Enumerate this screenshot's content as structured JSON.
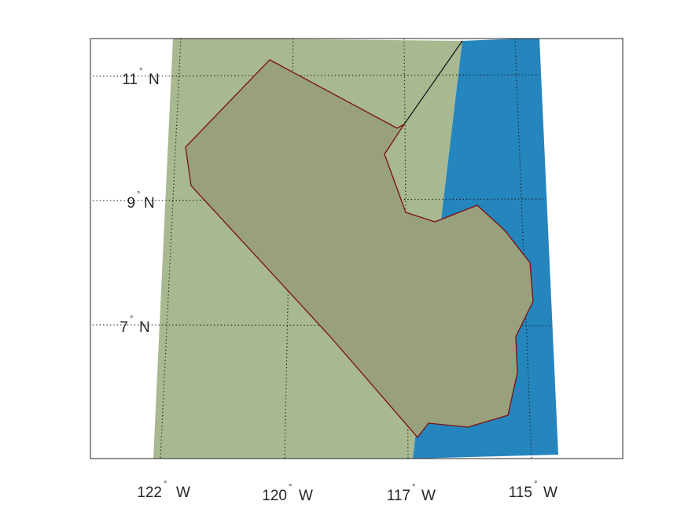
{
  "map": {
    "colors": {
      "land": "#a8b890",
      "ocean": "#2585bd",
      "region_fill": "#98a07c",
      "region_border": "#7a1010",
      "frame": "#262626"
    },
    "latitude_labels": [
      {
        "value": "11",
        "hemisphere": "N"
      },
      {
        "value": "9",
        "hemisphere": "N"
      },
      {
        "value": "7",
        "hemisphere": "N"
      }
    ],
    "longitude_labels": [
      {
        "value": "122",
        "hemisphere": "W"
      },
      {
        "value": "120",
        "hemisphere": "W"
      },
      {
        "value": "117",
        "hemisphere": "W"
      },
      {
        "value": "115",
        "hemisphere": "W"
      }
    ],
    "degree_symbol": "°"
  }
}
